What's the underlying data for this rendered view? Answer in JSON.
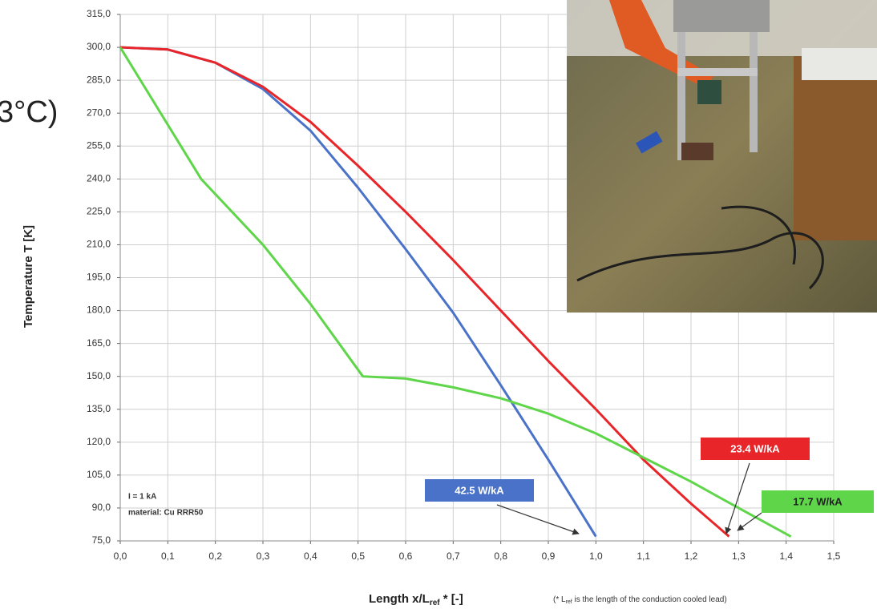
{
  "chart_data": {
    "type": "line",
    "cropped_text": "3°C)",
    "y_label": "Temperature T [K]",
    "x_label": {
      "text": "Length x/L",
      "sub": "ref",
      "suffix": " * [-]"
    },
    "note": {
      "prefix": "(* L",
      "sub": "ref",
      "suffix": " is the length of the conduction cooled lead)"
    },
    "annotations": [
      "I = 1 kA",
      "material: Cu RRR50"
    ],
    "xlim": [
      0,
      1.5
    ],
    "ylim": [
      75,
      315
    ],
    "xticks": [
      {
        "value": 0,
        "label": "0,0"
      },
      {
        "value": 0.1,
        "label": "0,1"
      },
      {
        "value": 0.2,
        "label": "0,2"
      },
      {
        "value": 0.3,
        "label": "0,3"
      },
      {
        "value": 0.4,
        "label": "0,4"
      },
      {
        "value": 0.5,
        "label": "0,5"
      },
      {
        "value": 0.6,
        "label": "0,6"
      },
      {
        "value": 0.7,
        "label": "0,7"
      },
      {
        "value": 0.8,
        "label": "0,8"
      },
      {
        "value": 0.9,
        "label": "0,9"
      },
      {
        "value": 1.0,
        "label": "1,0"
      },
      {
        "value": 1.1,
        "label": "1,1"
      },
      {
        "value": 1.2,
        "label": "1,2"
      },
      {
        "value": 1.3,
        "label": "1,3"
      },
      {
        "value": 1.4,
        "label": "1,4"
      },
      {
        "value": 1.5,
        "label": "1,5"
      }
    ],
    "yticks": [
      {
        "value": 75,
        "label": "75,0"
      },
      {
        "value": 90,
        "label": "90,0"
      },
      {
        "value": 105,
        "label": "105,0"
      },
      {
        "value": 120,
        "label": "120,0"
      },
      {
        "value": 135,
        "label": "135,0"
      },
      {
        "value": 150,
        "label": "150,0"
      },
      {
        "value": 165,
        "label": "165,0"
      },
      {
        "value": 180,
        "label": "180,0"
      },
      {
        "value": 195,
        "label": "195,0"
      },
      {
        "value": 210,
        "label": "210,0"
      },
      {
        "value": 225,
        "label": "225,0"
      },
      {
        "value": 240,
        "label": "240,0"
      },
      {
        "value": 255,
        "label": "255,0"
      },
      {
        "value": 270,
        "label": "270,0"
      },
      {
        "value": 285,
        "label": "285,0"
      },
      {
        "value": 300,
        "label": "300,0"
      },
      {
        "value": 315,
        "label": "315,0"
      }
    ],
    "grid": true,
    "series": [
      {
        "name": "42.5 W/kA",
        "color": "#4a72c9",
        "x": [
          0,
          0.1,
          0.2,
          0.3,
          0.4,
          0.5,
          0.6,
          0.7,
          0.8,
          0.9,
          1.0
        ],
        "values": [
          300,
          299,
          293,
          281,
          262,
          236,
          208,
          179,
          146,
          112,
          77
        ]
      },
      {
        "name": "23.4 W/kA",
        "color": "#e8262a",
        "x": [
          0,
          0.1,
          0.2,
          0.3,
          0.4,
          0.5,
          0.6,
          0.7,
          0.8,
          0.9,
          1.0,
          1.1,
          1.2,
          1.28
        ],
        "values": [
          300,
          299,
          293,
          282,
          266,
          246,
          225,
          203,
          180,
          157,
          135,
          112,
          92,
          77
        ]
      },
      {
        "name": "17.7 W/kA",
        "color": "#5fd64a",
        "x": [
          0,
          0.17,
          0.3,
          0.4,
          0.51,
          0.6,
          0.7,
          0.8,
          0.9,
          1.0,
          1.1,
          1.2,
          1.3,
          1.41
        ],
        "values": [
          300,
          240,
          210,
          183,
          150,
          149,
          145,
          140,
          133,
          124,
          113,
          102,
          90,
          77
        ]
      }
    ]
  }
}
